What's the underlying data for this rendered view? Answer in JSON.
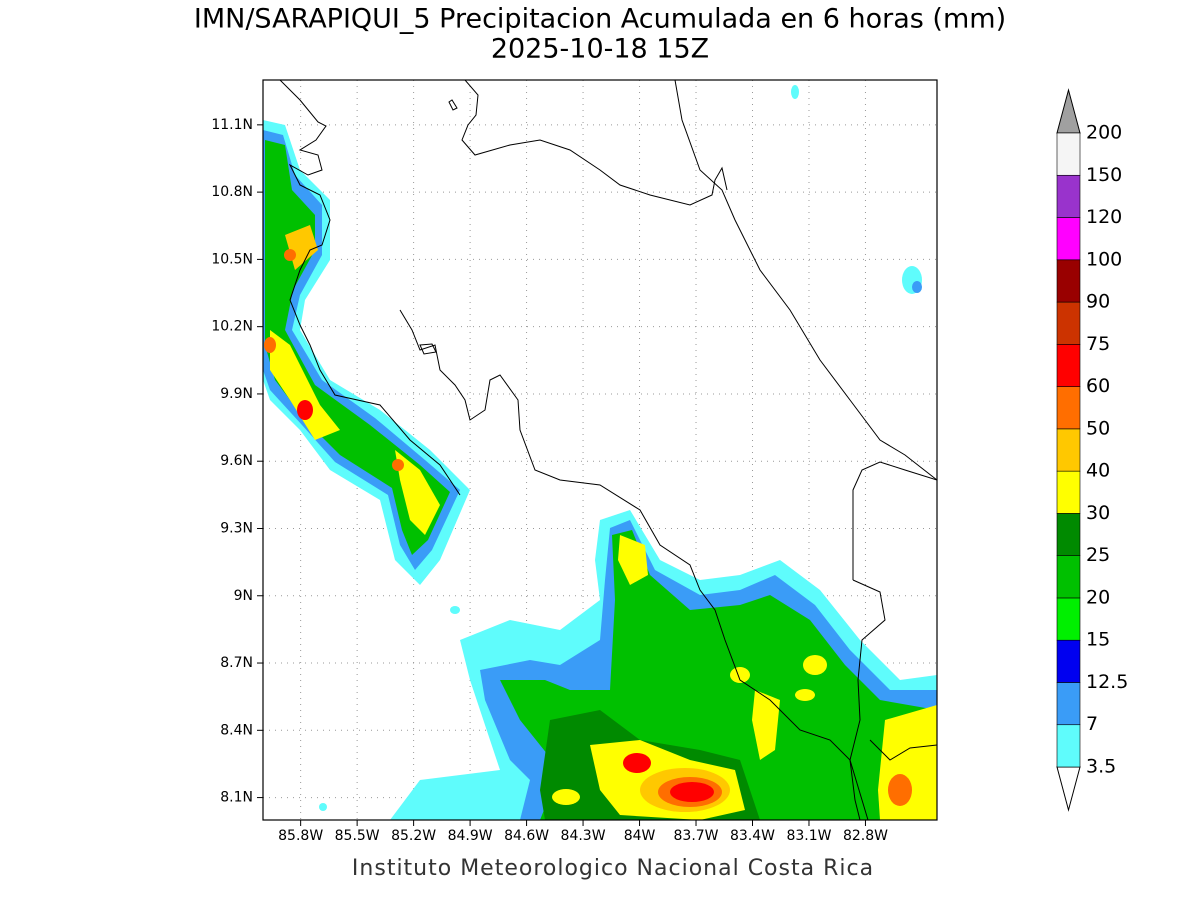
{
  "title": "IMN/SARAPIQUI_5 Precipitacion Acumulada en 6 horas (mm)",
  "subtitle": "2025-10-18 15Z",
  "footer": "Instituto Meteorologico Nacional Costa Rica",
  "map": {
    "lon_range": [
      86.0,
      82.42
    ],
    "lat_range": [
      11.3,
      8.0
    ],
    "grid": true,
    "lon_ticks": [
      {
        "value": 85.8,
        "label": "85.8W"
      },
      {
        "value": 85.5,
        "label": "85.5W"
      },
      {
        "value": 85.2,
        "label": "85.2W"
      },
      {
        "value": 84.9,
        "label": "84.9W"
      },
      {
        "value": 84.6,
        "label": "84.6W"
      },
      {
        "value": 84.3,
        "label": "84.3W"
      },
      {
        "value": 84.0,
        "label": "84W"
      },
      {
        "value": 83.7,
        "label": "83.7W"
      },
      {
        "value": 83.4,
        "label": "83.4W"
      },
      {
        "value": 83.1,
        "label": "83.1W"
      },
      {
        "value": 82.8,
        "label": "82.8W"
      }
    ],
    "lat_ticks": [
      {
        "value": 11.1,
        "label": "11.1N"
      },
      {
        "value": 10.8,
        "label": "10.8N"
      },
      {
        "value": 10.5,
        "label": "10.5N"
      },
      {
        "value": 10.2,
        "label": "10.2N"
      },
      {
        "value": 9.9,
        "label": "9.9N"
      },
      {
        "value": 9.6,
        "label": "9.6N"
      },
      {
        "value": 9.3,
        "label": "9.3N"
      },
      {
        "value": 9.0,
        "label": "9N"
      },
      {
        "value": 8.7,
        "label": "8.7N"
      },
      {
        "value": 8.4,
        "label": "8.4N"
      },
      {
        "value": 8.1,
        "label": "8.1N"
      }
    ]
  },
  "colorbar": {
    "levels": [
      3.5,
      7,
      12.5,
      15,
      20,
      25,
      30,
      40,
      50,
      60,
      75,
      90,
      100,
      120,
      150,
      200
    ],
    "colors": [
      "#5ffcfc",
      "#3a9cf7",
      "#0000f0",
      "#00f000",
      "#00c000",
      "#008a00",
      "#ffff00",
      "#ffc800",
      "#ff6e00",
      "#ff0000",
      "#cc3300",
      "#990000",
      "#ff00ff",
      "#9933cc",
      "#f5f5f5"
    ]
  }
}
